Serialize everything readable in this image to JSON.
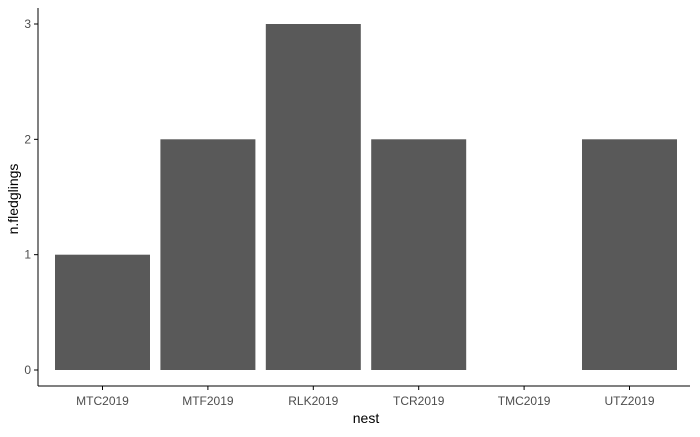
{
  "chart_data": {
    "type": "bar",
    "title": "",
    "xlabel": "nest",
    "ylabel": "n.fledglings",
    "categories": [
      "MTC2019",
      "MTF2019",
      "RLK2019",
      "TCR2019",
      "TMC2019",
      "UTZ2019"
    ],
    "values": [
      1,
      2,
      3,
      2,
      0,
      2
    ],
    "ylim": [
      0,
      3
    ],
    "yticks": [
      0,
      1,
      2,
      3
    ],
    "grid": false,
    "legend": "none",
    "colors": {
      "bar": "#595959",
      "axis": "#000000",
      "tick_text": "#4d4d4d",
      "background": "#ffffff"
    }
  }
}
